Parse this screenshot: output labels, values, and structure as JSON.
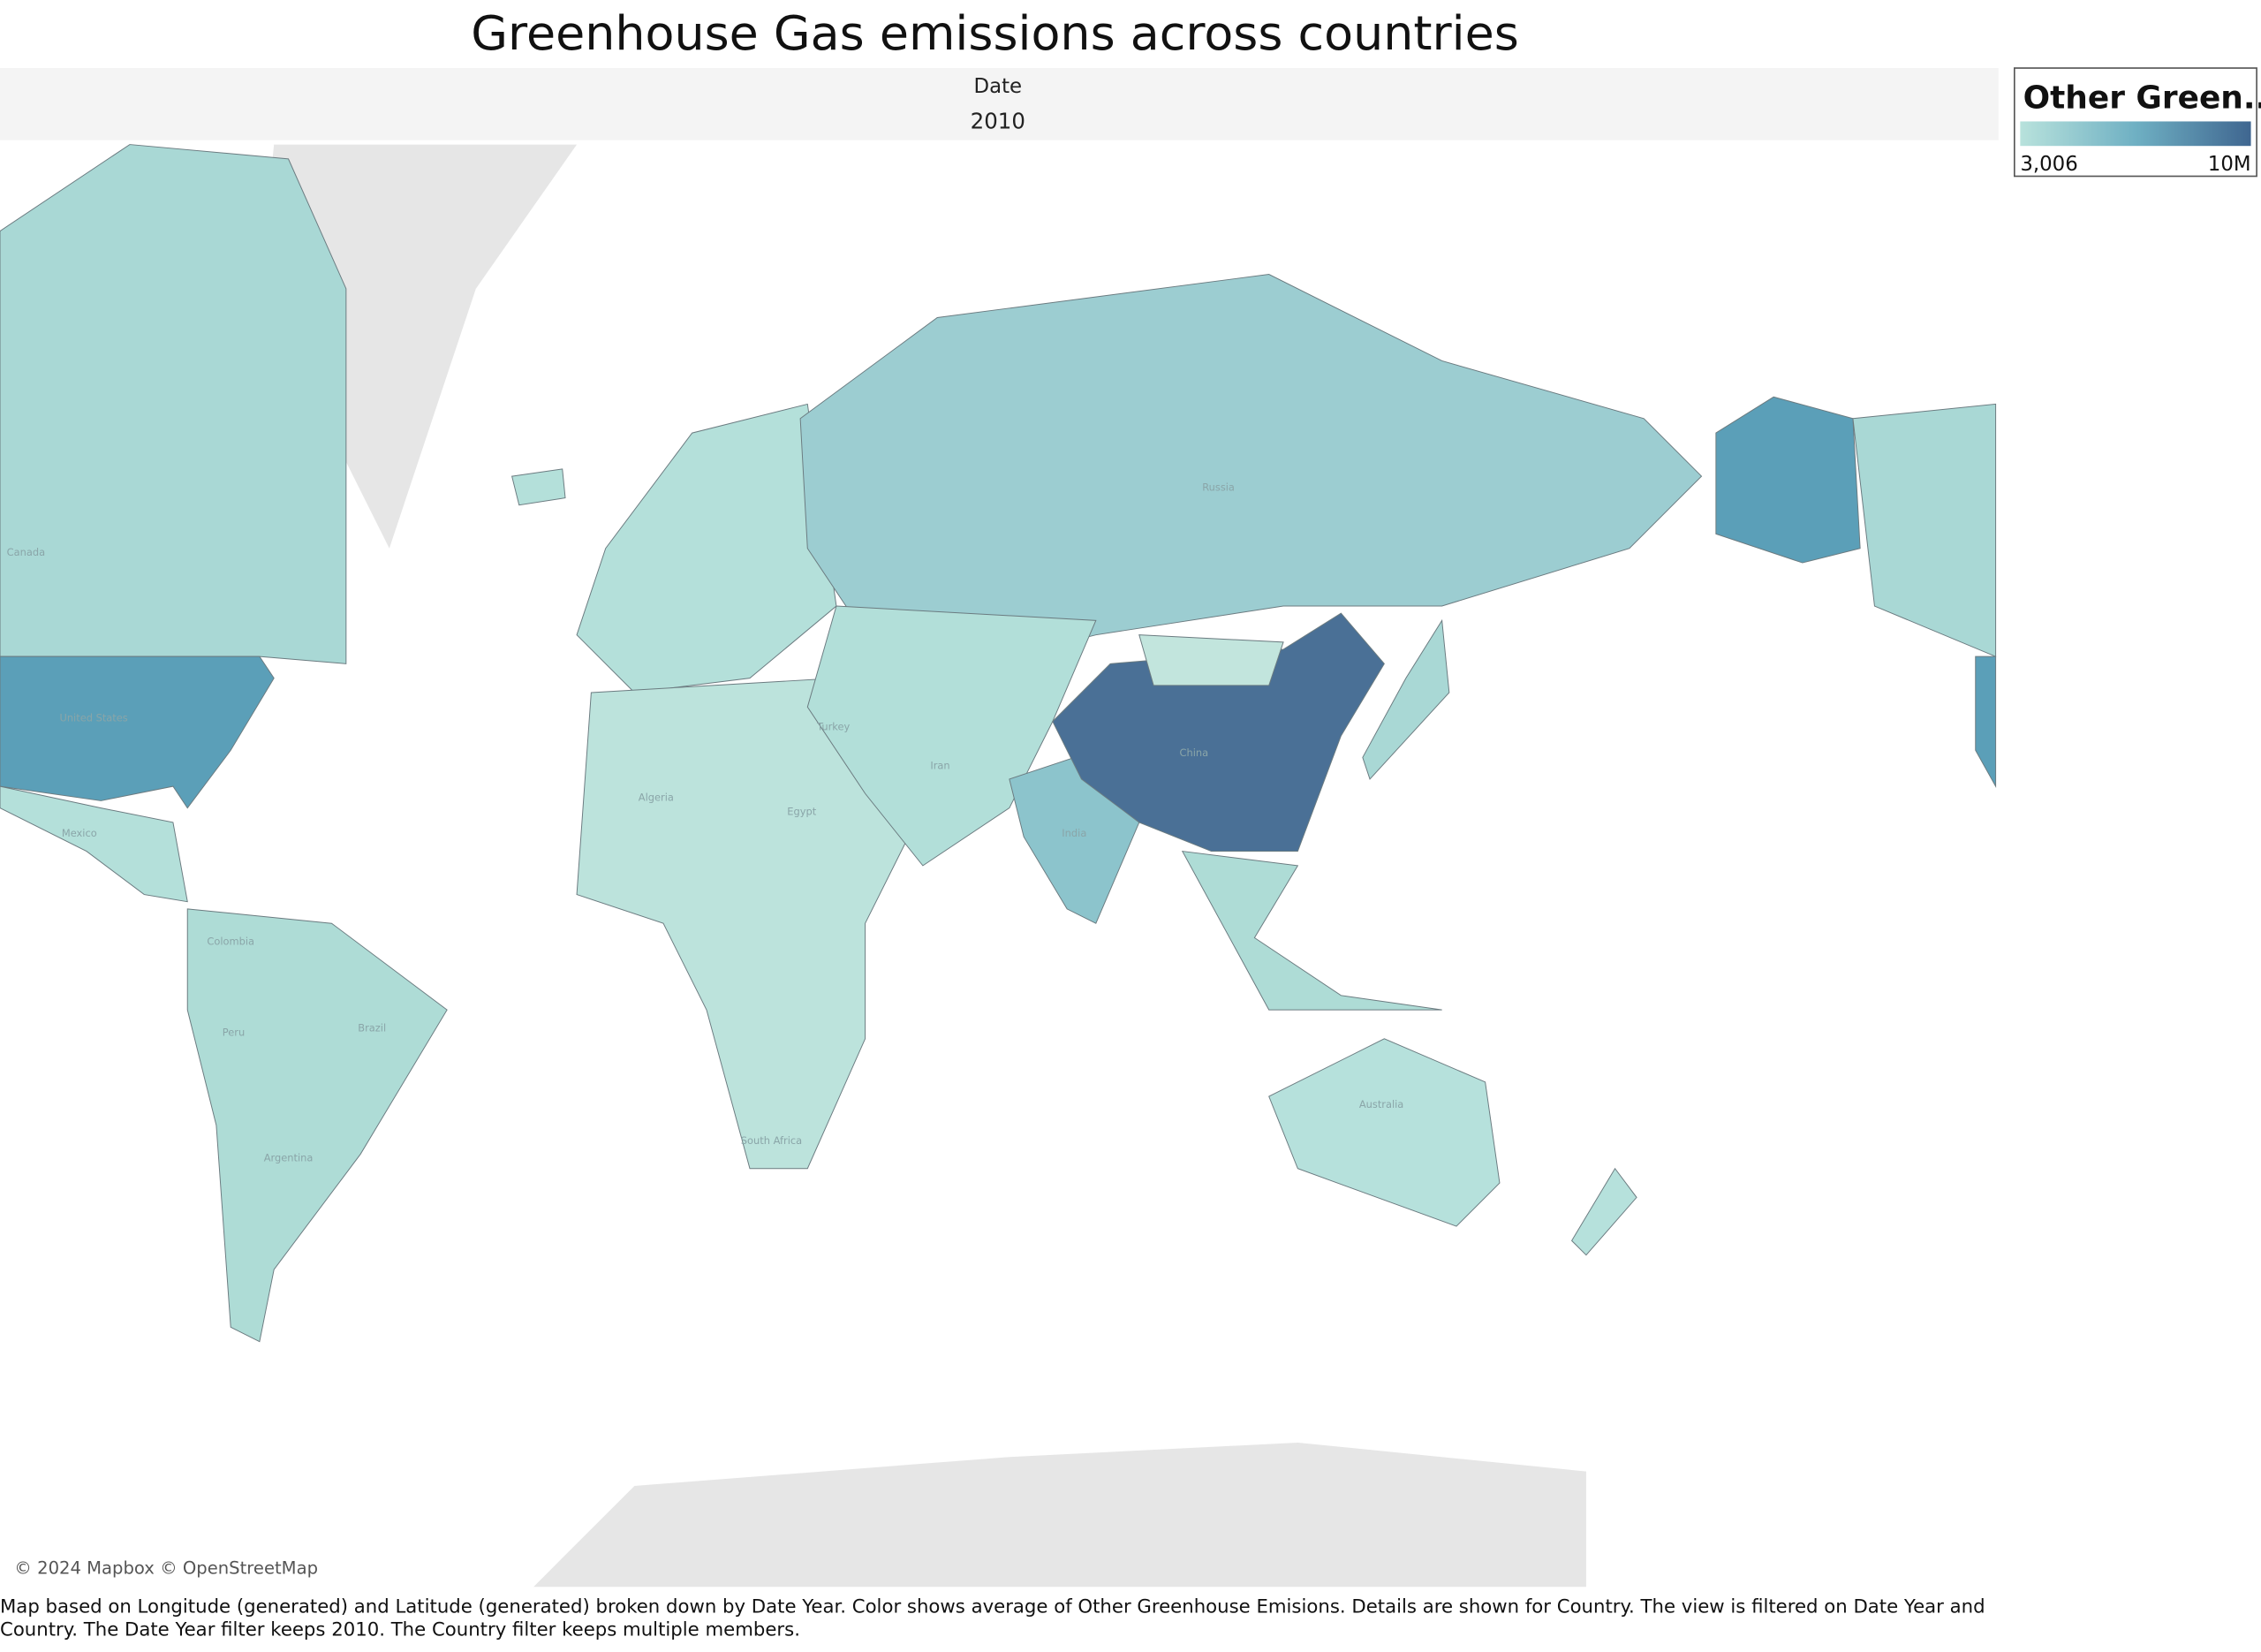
{
  "header": {
    "title": "Greenhouse Gas emissions across countries",
    "filter_label": "Date",
    "filter_value": "2010"
  },
  "legend": {
    "title": "Other Green..",
    "min_label": "3,006",
    "max_label": "10M"
  },
  "map": {
    "labels": [
      "Canada",
      "United States",
      "Mexico",
      "Colombia",
      "Peru",
      "Brazil",
      "Argentina",
      "Algeria",
      "Egypt",
      "South Africa",
      "Turkey",
      "Iran",
      "India",
      "China",
      "Russia",
      "Australia"
    ],
    "attribution": "© 2024 Mapbox © OpenStreetMap"
  },
  "footer": {
    "caption": "Map based on Longitude (generated) and Latitude (generated) broken down by Date Year.  Color shows average of Other Greenhouse Emisions.  Details are shown for Country. The view is filtered on Date Year and Country. The Date Year filter keeps 2010. The Country filter keeps multiple members."
  }
}
